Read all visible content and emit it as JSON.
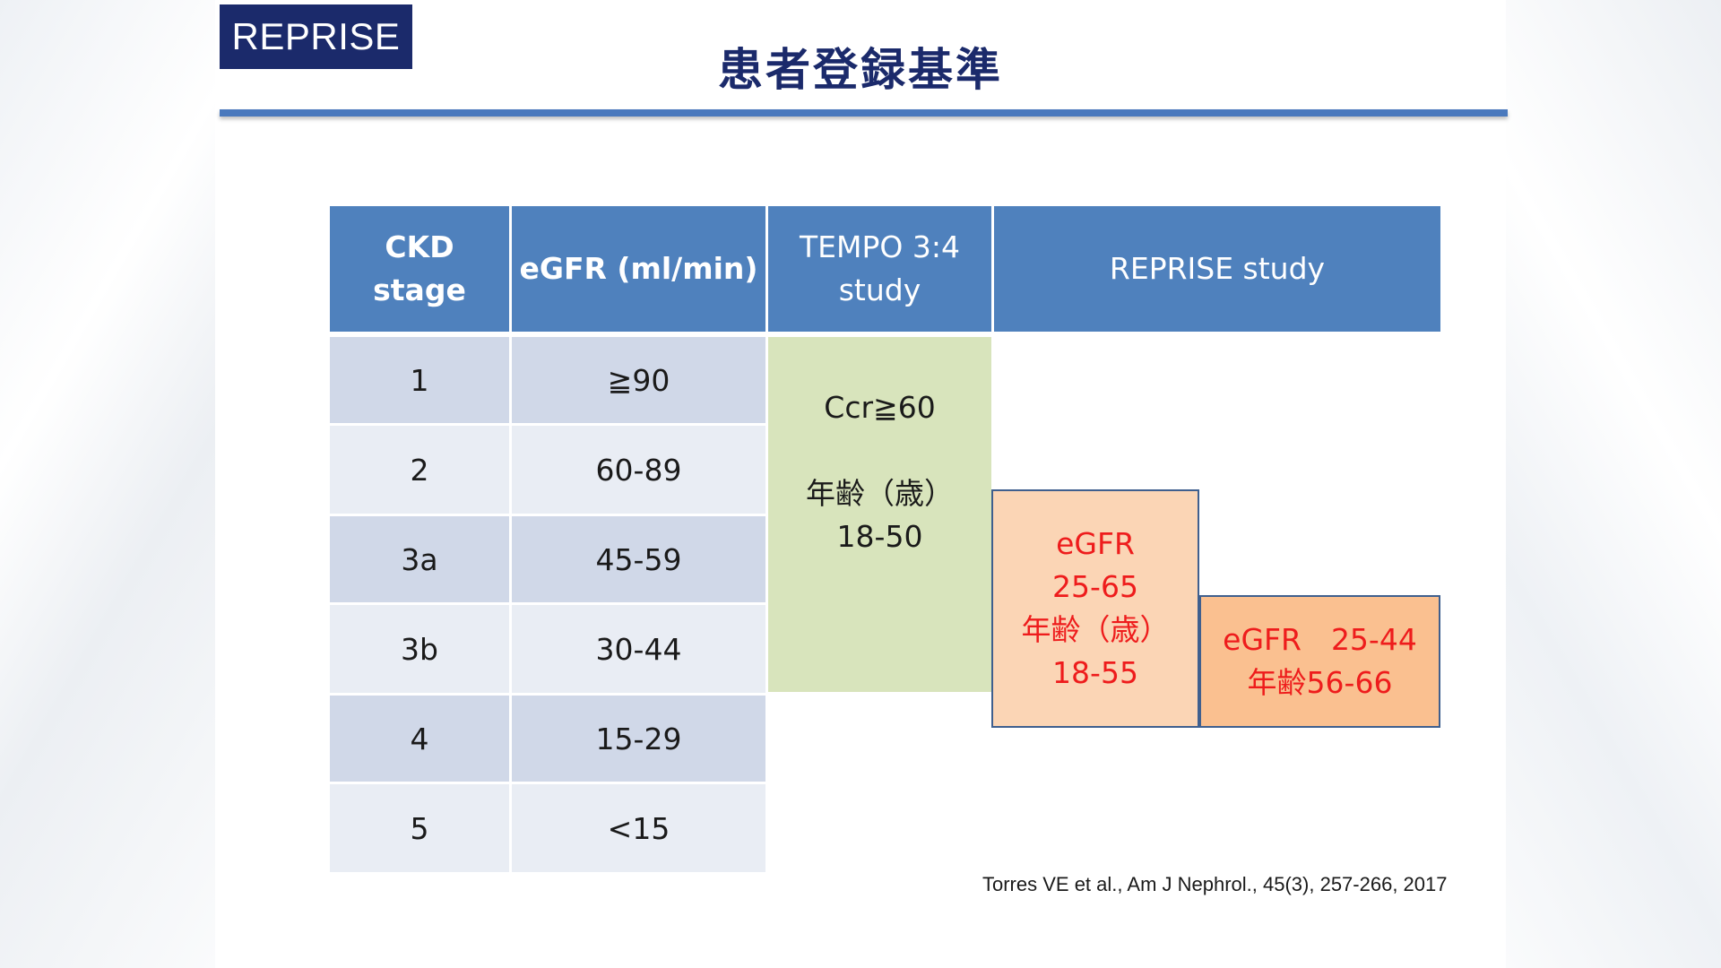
{
  "brand": "REPRISE",
  "title": "患者登録基準",
  "table": {
    "headers": {
      "ckd_line1": "CKD",
      "ckd_line2": "stage",
      "egfr": "eGFR (ml/min)",
      "tempo_line1": "TEMPO 3:4",
      "tempo_line2": "study",
      "reprise": "REPRISE study"
    },
    "rows": [
      {
        "stage": "1",
        "egfr": "≧90"
      },
      {
        "stage": "2",
        "egfr": "60-89"
      },
      {
        "stage": "3a",
        "egfr": "45-59"
      },
      {
        "stage": "3b",
        "egfr": "30-44"
      },
      {
        "stage": "4",
        "egfr": "15-29"
      },
      {
        "stage": "5",
        "egfr": "<15"
      }
    ],
    "tempo_criteria": {
      "line1": "Ccr≧60",
      "line2": "年齢（歳）",
      "line3": "18-50"
    },
    "reprise_group1": {
      "line1": "eGFR",
      "line2": "25-65",
      "line3": "年齢（歳）",
      "line4": "18-55"
    },
    "reprise_group2": {
      "line1": "eGFR　25-44",
      "line2": "年齢56-66"
    }
  },
  "citation": "Torres VE et al., Am J Nephrol., 45(3), 257-266, 2017",
  "colors": {
    "brand_bg": "#1b2a6b",
    "header_blue": "#4f81bd",
    "row_dark": "#d0d8e8",
    "row_light": "#e9edf4",
    "tempo_green": "#d8e4bc",
    "reprise_peach": "#fbd5b5",
    "reprise_orange": "#fac090",
    "criteria_red": "#ee1c1c"
  }
}
